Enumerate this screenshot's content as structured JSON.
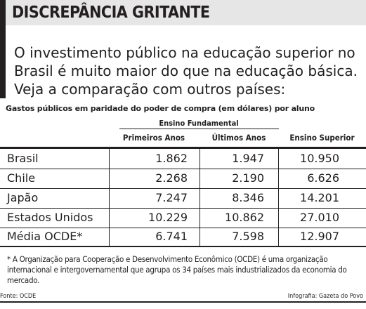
{
  "title": "DISCREPÂNCIA GRITANTE",
  "lead": "O investimento público na educação superior no Brasil é muito maior do que na educação básica. Veja a comparação com outros países:",
  "subtitle": "Gastos públicos em paridade do poder de compra (em dólares) por aluno",
  "table": {
    "group_header": "Ensino Fundamental",
    "columns": [
      "Primeiros  Anos",
      "Últimos Anos",
      "Ensino Superior"
    ],
    "rows": [
      {
        "label": "Brasil",
        "values": [
          "1.862",
          "1.947",
          "10.950"
        ]
      },
      {
        "label": "Chile",
        "values": [
          "2.268",
          "2.190",
          "6.626"
        ]
      },
      {
        "label": "Japão",
        "values": [
          "7.247",
          "8.346",
          "14.201"
        ]
      },
      {
        "label": "Estados Unidos",
        "values": [
          "10.229",
          "10.862",
          "27.010"
        ]
      },
      {
        "label": "Média OCDE*",
        "values": [
          "6.741",
          "7.598",
          "12.907"
        ]
      }
    ]
  },
  "footnote": "* A Organização para Cooperação e Desenvolvimento Econômico (OCDE) é uma organização internacional e intergovernamental que agrupa os 34 países mais industrializados da economia do mercado.",
  "source": "Fonte: OCDE",
  "credit": "Infografia: Gazeta do Povo"
}
